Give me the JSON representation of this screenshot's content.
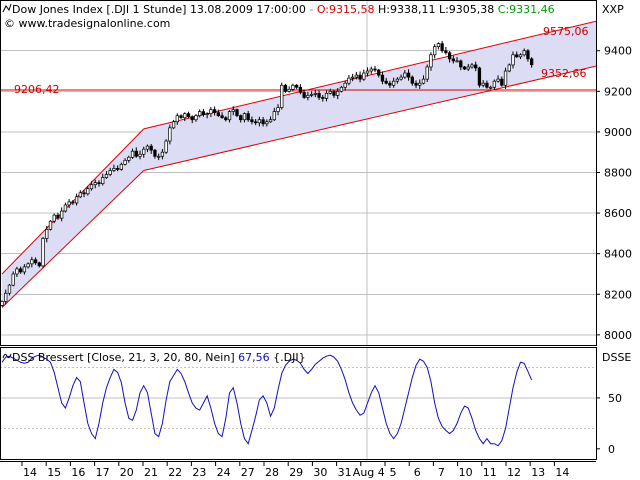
{
  "header": {
    "instrument": "Dow Jones Index [.DJI  1 Stunde]",
    "datetime": "13.08.2009 17:00:00",
    "open_label": "O:9315,58",
    "high_label": "H:9338,11",
    "low_label": "L:9305,38",
    "close_label": "C:9331,46",
    "source": "www.tradesignalonline.com",
    "price_axis_unit": "XXP"
  },
  "indicator": {
    "title": "DSS Bressert [Close, 21, 3, 20, 80, Nein]",
    "value": "67,56",
    "symbol": "{.DJI}",
    "axis_unit": "DSSE"
  },
  "annotations": {
    "level_line_label": "9206,42",
    "channel_upper_label": "9575,06",
    "channel_lower_label": "9352,66"
  },
  "colors": {
    "up_candle": "#ffffff",
    "down_candle": "#000000",
    "channel_line": "#dd0000",
    "channel_fill": "#dcdcf4",
    "indicator_line": "#1010c0",
    "open_text": "#dd0000",
    "close_text": "#009900",
    "grid": "#c0c0c0",
    "annotation_text": "#cc0000"
  },
  "chart_data": [
    {
      "type": "candlestick",
      "title": "Dow Jones Index [.DJI  1 Stunde]",
      "ylim": [
        7950,
        9650
      ],
      "yticks": [
        8000,
        8200,
        8400,
        8600,
        8800,
        9000,
        9200,
        9400
      ],
      "xticks": [
        "14",
        "15",
        "16",
        "17",
        "20",
        "21",
        "22",
        "23",
        "24",
        "27",
        "28",
        "29",
        "30",
        "31",
        "Aug 4",
        "5",
        "6",
        "7",
        "10",
        "11",
        "12",
        "13",
        "14"
      ],
      "closes": [
        8165,
        8205,
        8245,
        8300,
        8325,
        8310,
        8335,
        8350,
        8370,
        8355,
        8340,
        8475,
        8520,
        8560,
        8590,
        8575,
        8610,
        8640,
        8655,
        8650,
        8680,
        8700,
        8695,
        8720,
        8740,
        8750,
        8745,
        8775,
        8790,
        8810,
        8820,
        8815,
        8840,
        8860,
        8875,
        8905,
        8880,
        8890,
        8915,
        8930,
        8910,
        8880,
        8880,
        8900,
        8955,
        9020,
        9050,
        9080,
        9070,
        9090,
        9075,
        9060,
        9080,
        9100,
        9085,
        9090,
        9110,
        9095,
        9080,
        9070,
        9060,
        9100,
        9110,
        9080,
        9060,
        9090,
        9060,
        9050,
        9045,
        9060,
        9040,
        9050,
        9060,
        9100,
        9120,
        9230,
        9200,
        9210,
        9230,
        9220,
        9195,
        9170,
        9180,
        9185,
        9190,
        9170,
        9165,
        9190,
        9200,
        9180,
        9200,
        9220,
        9240,
        9265,
        9270,
        9280,
        9260,
        9290,
        9300,
        9310,
        9305,
        9280,
        9250,
        9240,
        9230,
        9250,
        9260,
        9270,
        9290,
        9270,
        9240,
        9230,
        9240,
        9260,
        9320,
        9380,
        9420,
        9435,
        9400,
        9390,
        9360,
        9350,
        9350,
        9320,
        9310,
        9320,
        9330,
        9315,
        9230,
        9240,
        9220,
        9220,
        9250,
        9260,
        9230,
        9300,
        9330,
        9380,
        9370,
        9380,
        9400,
        9360,
        9331
      ],
      "channels": [
        {
          "points": [
            [
              0,
              8300
            ],
            [
              38,
              9015
            ]
          ]
        },
        {
          "points": [
            [
              0,
              8135
            ],
            [
              38,
              8810
            ]
          ]
        },
        {
          "points": [
            [
              38,
              9015
            ],
            [
              166,
              9575.06
            ]
          ]
        },
        {
          "points": [
            [
              38,
              8810
            ],
            [
              166,
              9352.66
            ]
          ]
        }
      ],
      "horizontal_level": 9206.42
    },
    {
      "type": "line",
      "title": "DSS Bressert [Close, 21, 3, 20, 80, Nein]",
      "ylim": [
        -10,
        100
      ],
      "yticks": [
        0,
        50
      ],
      "series": [
        {
          "name": "DSS Bressert",
          "values": [
            85,
            90,
            91,
            89,
            87,
            85,
            84,
            85,
            89,
            91,
            92,
            90,
            88,
            85,
            75,
            60,
            45,
            40,
            50,
            62,
            70,
            66,
            45,
            25,
            15,
            10,
            25,
            45,
            60,
            70,
            78,
            75,
            65,
            45,
            30,
            28,
            38,
            55,
            62,
            55,
            35,
            15,
            12,
            25,
            48,
            66,
            72,
            78,
            74,
            66,
            55,
            45,
            40,
            38,
            45,
            52,
            40,
            25,
            15,
            12,
            30,
            55,
            60,
            45,
            25,
            10,
            5,
            18,
            32,
            48,
            52,
            45,
            32,
            40,
            58,
            74,
            82,
            86,
            88,
            87,
            84,
            78,
            74,
            78,
            83,
            86,
            89,
            91,
            92,
            90,
            86,
            78,
            68,
            55,
            45,
            38,
            33,
            35,
            45,
            55,
            62,
            55,
            40,
            25,
            15,
            10,
            15,
            25,
            40,
            55,
            70,
            82,
            88,
            86,
            80,
            66,
            45,
            30,
            22,
            18,
            15,
            18,
            25,
            35,
            42,
            40,
            30,
            18,
            10,
            5,
            10,
            5,
            5,
            3,
            8,
            20,
            40,
            60,
            75,
            85,
            84,
            76,
            67.56
          ]
        }
      ]
    }
  ]
}
